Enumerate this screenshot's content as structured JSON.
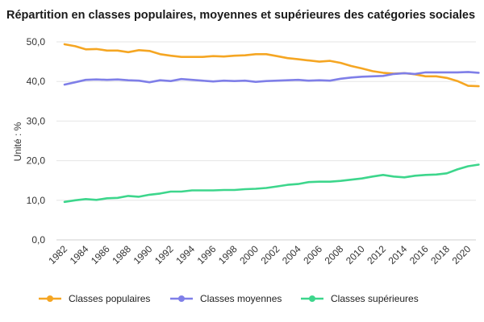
{
  "chart_data": {
    "type": "line",
    "title": "Répartition en classes populaires, moyennes et supérieures des catégories sociales",
    "ylabel": "Unité : %",
    "xlabel": "",
    "ylim": [
      0,
      50
    ],
    "yticks": [
      "0,0",
      "10,0",
      "20,0",
      "30,0",
      "40,0",
      "50,0"
    ],
    "ytick_values": [
      0,
      10,
      20,
      30,
      40,
      50
    ],
    "xtick_labels": [
      "1982",
      "1984",
      "1986",
      "1988",
      "1990",
      "1992",
      "1994",
      "1996",
      "1998",
      "2000",
      "2002",
      "2004",
      "2006",
      "2008",
      "2010",
      "2012",
      "2014",
      "2016",
      "2018",
      "2020"
    ],
    "grid": true,
    "legend_position": "bottom",
    "x": [
      1982,
      1983,
      1984,
      1985,
      1986,
      1987,
      1988,
      1989,
      1990,
      1991,
      1992,
      1993,
      1994,
      1995,
      1996,
      1997,
      1998,
      1999,
      2000,
      2001,
      2002,
      2003,
      2004,
      2005,
      2006,
      2007,
      2008,
      2009,
      2010,
      2011,
      2012,
      2013,
      2014,
      2015,
      2016,
      2017,
      2018,
      2019,
      2020,
      2021
    ],
    "series": [
      {
        "name": "Classes populaires",
        "color": "#f5a623",
        "values": [
          49.4,
          48.9,
          48.1,
          48.2,
          47.8,
          47.8,
          47.4,
          47.9,
          47.7,
          46.9,
          46.5,
          46.2,
          46.2,
          46.2,
          46.4,
          46.3,
          46.5,
          46.6,
          46.9,
          46.9,
          46.4,
          45.9,
          45.6,
          45.3,
          45.0,
          45.2,
          44.7,
          43.9,
          43.3,
          42.6,
          42.2,
          42.0,
          42.1,
          41.8,
          41.3,
          41.3,
          40.9,
          40.1,
          38.9,
          38.8
        ]
      },
      {
        "name": "Classes moyennes",
        "color": "#7f7fe8",
        "values": [
          39.2,
          39.8,
          40.4,
          40.5,
          40.4,
          40.5,
          40.3,
          40.2,
          39.8,
          40.3,
          40.1,
          40.6,
          40.4,
          40.2,
          40.0,
          40.2,
          40.1,
          40.2,
          39.9,
          40.1,
          40.2,
          40.3,
          40.4,
          40.2,
          40.3,
          40.2,
          40.7,
          41.0,
          41.2,
          41.3,
          41.4,
          41.9,
          42.1,
          41.9,
          42.3,
          42.3,
          42.3,
          42.3,
          42.4,
          42.2
        ]
      },
      {
        "name": "Classes supérieures",
        "color": "#3dd68c",
        "values": [
          9.6,
          10.0,
          10.3,
          10.1,
          10.5,
          10.6,
          11.1,
          10.9,
          11.4,
          11.7,
          12.2,
          12.2,
          12.5,
          12.5,
          12.5,
          12.6,
          12.6,
          12.8,
          12.9,
          13.1,
          13.5,
          13.9,
          14.1,
          14.6,
          14.7,
          14.7,
          14.9,
          15.2,
          15.5,
          16.0,
          16.4,
          16.0,
          15.8,
          16.2,
          16.4,
          16.5,
          16.8,
          17.8,
          18.6,
          19.0
        ]
      }
    ]
  }
}
